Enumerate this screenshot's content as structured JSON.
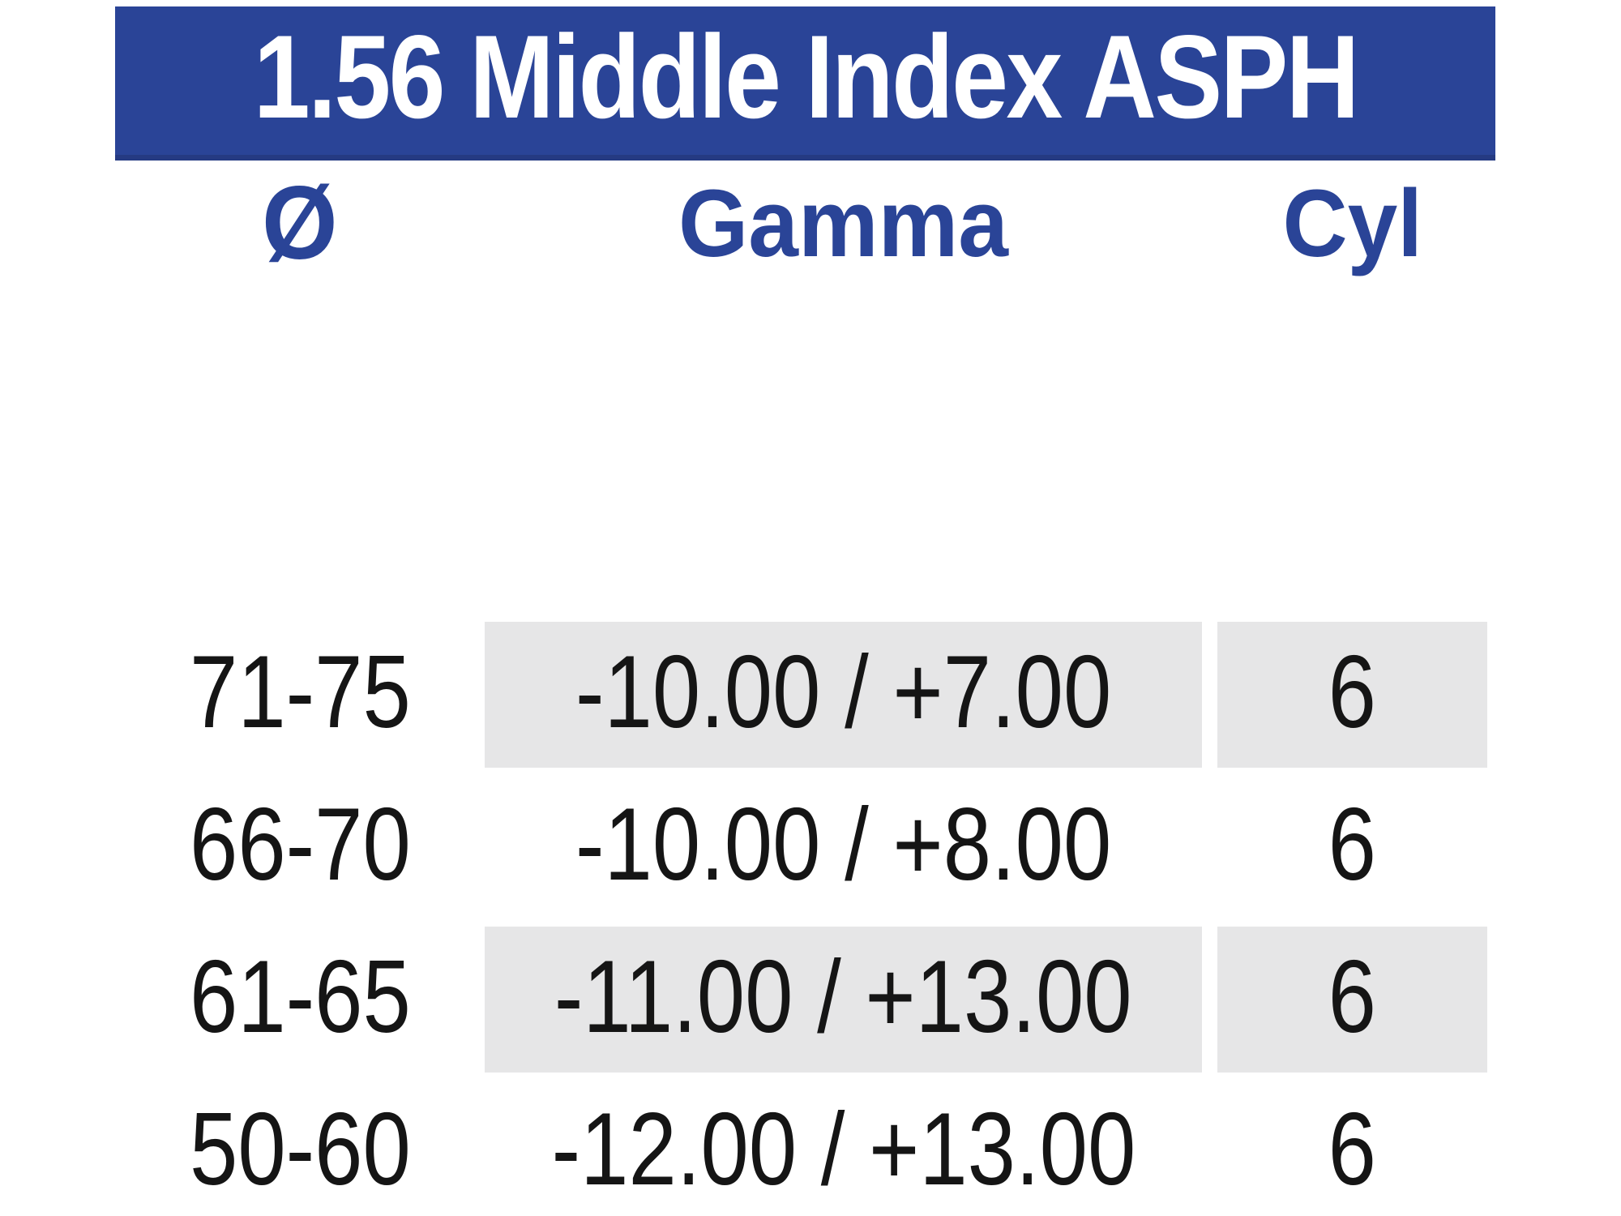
{
  "title": "1.56 Middle Index ASPH",
  "columns": [
    {
      "key": "diameter",
      "label": "Ø"
    },
    {
      "key": "gamma",
      "label": "Gamma"
    },
    {
      "key": "cyl",
      "label": "Cyl"
    }
  ],
  "rows": [
    {
      "diameter": "71-75",
      "gamma": "-10.00 / +7.00",
      "cyl": "6",
      "shaded": true
    },
    {
      "diameter": "66-70",
      "gamma": "-10.00 / +8.00",
      "cyl": "6",
      "shaded": false
    },
    {
      "diameter": "61-65",
      "gamma": "-11.00 / +13.00",
      "cyl": "6",
      "shaded": true
    },
    {
      "diameter": "50-60",
      "gamma": "-12.00 / +13.00",
      "cyl": "6",
      "shaded": false
    }
  ],
  "colors": {
    "page_bg": "#ffffff",
    "header_bg": "#2a4497",
    "header_border": "#253a82",
    "header_text": "#ffffff",
    "accent_text": "#2a4497",
    "shaded_cell_bg": "#e6e6e7",
    "body_text": "#151515"
  }
}
